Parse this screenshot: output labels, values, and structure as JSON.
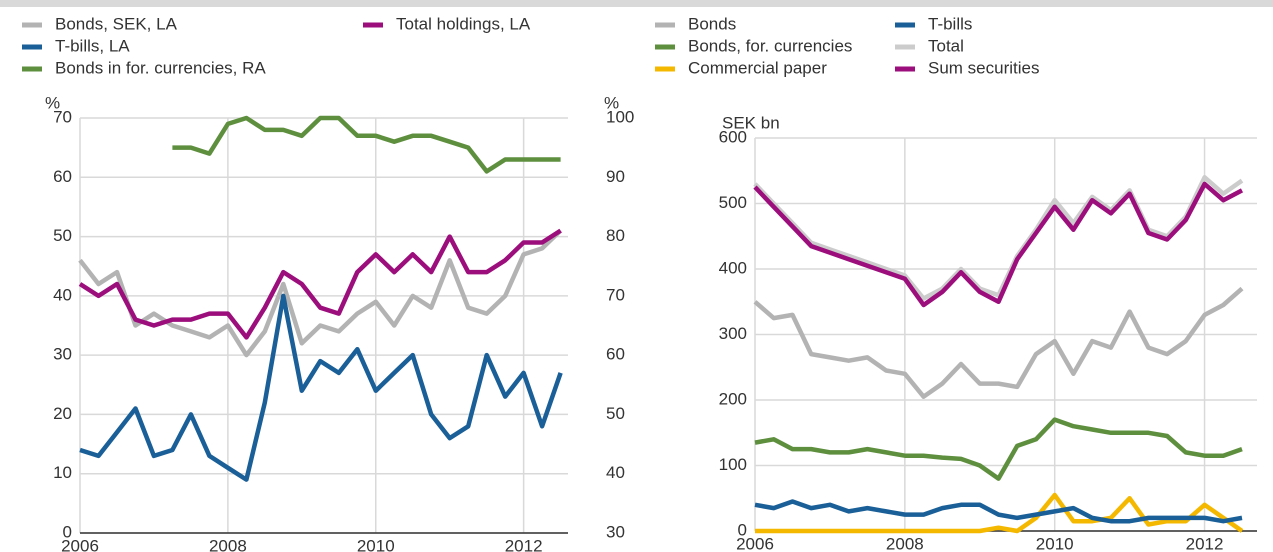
{
  "chart_data": [
    {
      "type": "line",
      "x": [
        2006,
        2006.25,
        2006.5,
        2006.75,
        2007,
        2007.25,
        2007.5,
        2007.75,
        2008,
        2008.25,
        2008.5,
        2008.75,
        2009,
        2009.25,
        2009.5,
        2009.75,
        2010,
        2010.25,
        2010.5,
        2010.75,
        2011,
        2011.25,
        2011.5,
        2011.75,
        2012,
        2012.25,
        2012.5
      ],
      "xlim": [
        2006,
        2012.6
      ],
      "xticks": [
        2006,
        2008,
        2010,
        2012
      ],
      "ylim": [
        0,
        70
      ],
      "yticks": [
        0,
        10,
        20,
        30,
        40,
        50,
        60,
        70
      ],
      "y2lim": [
        30,
        100
      ],
      "y2ticks": [
        30,
        40,
        50,
        60,
        70,
        80,
        90,
        100
      ],
      "ylabel": "%",
      "y2label": "%",
      "grid": true,
      "series": [
        {
          "name": "Bonds, SEK, LA",
          "color": "#b3b3b3",
          "values": [
            46,
            42,
            44,
            35,
            37,
            35,
            34,
            33,
            35,
            30,
            34,
            42,
            32,
            35,
            34,
            37,
            39,
            35,
            40,
            38,
            46,
            38,
            37,
            40,
            47,
            48,
            51
          ]
        },
        {
          "name": "T-bills, LA",
          "color": "#1a5f97",
          "values": [
            14,
            13,
            17,
            21,
            13,
            14,
            20,
            13,
            11,
            9,
            22,
            40,
            24,
            29,
            27,
            31,
            24,
            27,
            30,
            20,
            16,
            18,
            30,
            23,
            27,
            18,
            27
          ]
        },
        {
          "name": "Bonds in for. currencies, RA",
          "color": "#5e8f3e",
          "axis": "y2",
          "values": [
            null,
            null,
            null,
            null,
            null,
            95,
            95,
            94,
            99,
            100,
            98,
            98,
            97,
            100,
            100,
            97,
            97,
            96,
            97,
            97,
            96,
            95,
            91,
            93,
            93,
            93,
            93
          ]
        },
        {
          "name": "Total holdings, LA",
          "color": "#9b0e7c",
          "values": [
            42,
            40,
            42,
            36,
            35,
            36,
            36,
            37,
            37,
            33,
            38,
            44,
            42,
            38,
            37,
            44,
            47,
            44,
            47,
            44,
            50,
            44,
            44,
            46,
            49,
            49,
            51
          ]
        }
      ]
    },
    {
      "type": "line",
      "x": [
        2006,
        2006.25,
        2006.5,
        2006.75,
        2007,
        2007.25,
        2007.5,
        2007.75,
        2008,
        2008.25,
        2008.5,
        2008.75,
        2009,
        2009.25,
        2009.5,
        2009.75,
        2010,
        2010.25,
        2010.5,
        2010.75,
        2011,
        2011.25,
        2011.5,
        2011.75,
        2012,
        2012.25,
        2012.5
      ],
      "xlim": [
        2006,
        2012.7
      ],
      "xticks": [
        2006,
        2008,
        2010,
        2012
      ],
      "ylim": [
        0,
        600
      ],
      "yticks": [
        0,
        100,
        200,
        300,
        400,
        500,
        600
      ],
      "ylabel": "SEK bn",
      "grid": true,
      "series": [
        {
          "name": "Bonds",
          "color": "#b3b3b3",
          "values": [
            350,
            325,
            330,
            270,
            265,
            260,
            265,
            245,
            240,
            205,
            225,
            255,
            225,
            225,
            220,
            270,
            290,
            240,
            290,
            280,
            335,
            280,
            270,
            290,
            330,
            345,
            370
          ]
        },
        {
          "name": "Bonds, for. currencies",
          "color": "#5e8f3e",
          "values": [
            135,
            140,
            125,
            125,
            120,
            120,
            125,
            120,
            115,
            115,
            112,
            110,
            100,
            80,
            130,
            140,
            170,
            160,
            155,
            150,
            150,
            150,
            145,
            120,
            115,
            115,
            125
          ]
        },
        {
          "name": "Commercial paper",
          "color": "#f5b800",
          "values": [
            0,
            0,
            0,
            0,
            0,
            0,
            0,
            0,
            0,
            0,
            0,
            0,
            0,
            5,
            0,
            20,
            55,
            15,
            15,
            20,
            50,
            10,
            15,
            15,
            40,
            20,
            0
          ]
        },
        {
          "name": "T-bills",
          "color": "#1a5f97",
          "values": [
            40,
            35,
            45,
            35,
            40,
            30,
            35,
            30,
            25,
            25,
            35,
            40,
            40,
            25,
            20,
            25,
            30,
            35,
            20,
            15,
            15,
            20,
            20,
            20,
            20,
            15,
            20
          ]
        },
        {
          "name": "Total",
          "color": "#cccccc",
          "values": [
            530,
            500,
            470,
            440,
            430,
            420,
            410,
            400,
            390,
            355,
            370,
            400,
            370,
            360,
            420,
            460,
            505,
            470,
            510,
            490,
            520,
            460,
            450,
            480,
            540,
            515,
            535
          ]
        },
        {
          "name": "Sum securities",
          "color": "#9b0e7c",
          "values": [
            525,
            495,
            465,
            435,
            425,
            415,
            405,
            395,
            385,
            345,
            365,
            395,
            365,
            350,
            415,
            455,
            495,
            460,
            505,
            485,
            515,
            455,
            445,
            475,
            530,
            505,
            520
          ]
        }
      ]
    }
  ]
}
